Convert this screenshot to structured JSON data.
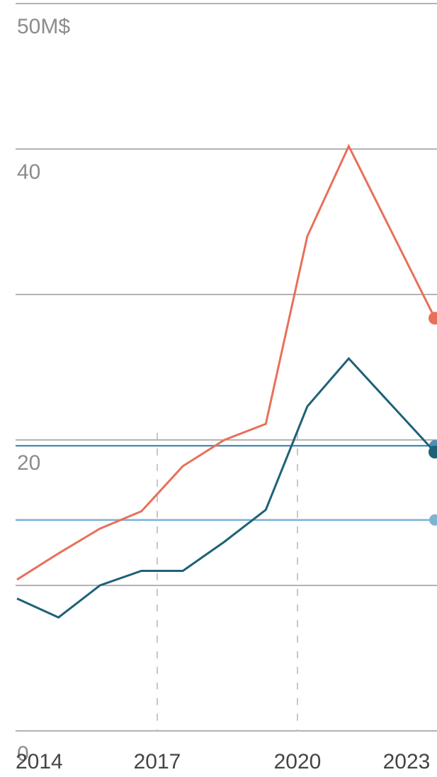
{
  "chart_data": {
    "type": "line",
    "y_unit_label": "50M$",
    "ylim": [
      0,
      50
    ],
    "y_ticks": [
      {
        "value": 0,
        "label": "0"
      },
      {
        "value": 10,
        "label": ""
      },
      {
        "value": 20,
        "label": "20"
      },
      {
        "value": 30,
        "label": ""
      },
      {
        "value": 40,
        "label": "40"
      },
      {
        "value": 50,
        "label": "50M$"
      }
    ],
    "x_ticks": [
      "2014",
      "2017",
      "2020",
      "2023"
    ],
    "x": [
      2014,
      2015,
      2016,
      2017,
      2018,
      2019,
      2020,
      2021,
      2022,
      2023
    ],
    "grid": true,
    "dashed_year_markers": [
      2017,
      2020
    ],
    "series": [
      {
        "color": "#e8705a",
        "values": [
          10.4,
          12.2,
          13.9,
          15.1,
          18.2,
          20.0,
          21.1,
          34.0,
          40.2,
          34.5
        ]
      },
      {
        "color": "#1e6277",
        "values": [
          9.1,
          7.8,
          10.0,
          11.0,
          11.0,
          13.0,
          15.2,
          22.3,
          25.6,
          22.5
        ]
      }
    ],
    "reference_lines": [
      {
        "value": 19.6,
        "color": "#4d8fb5"
      },
      {
        "value": 14.5,
        "color": "#7fb3d6"
      }
    ]
  }
}
